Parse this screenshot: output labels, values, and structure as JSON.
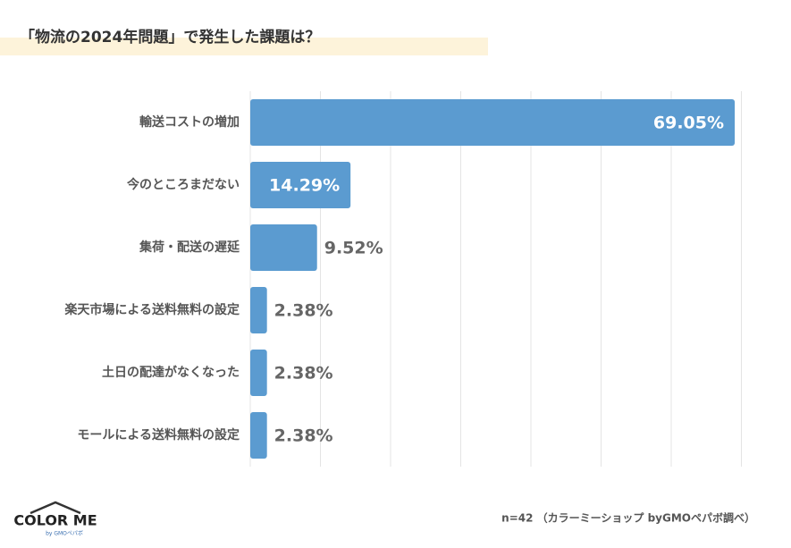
{
  "chart_data": {
    "type": "hbar",
    "title": "「物流の2024年問題」で発生した課題は？",
    "categories": [
      "輸送コストの増加",
      "今のところまだない",
      "集荷・配送の遅延",
      "楽天市場による送料無料の設定",
      "土日の配達がなくなった",
      "モールによる送料無料の設定"
    ],
    "values": [
      69.05,
      14.29,
      9.52,
      2.38,
      2.38,
      2.38
    ],
    "value_labels": [
      "69.05%",
      "14.29%",
      "9.52%",
      "2.38%",
      "2.38%",
      "2.38%"
    ],
    "color": "#5b9bd0",
    "xlim": [
      0,
      70
    ],
    "xticks": [
      0,
      10,
      20,
      30,
      40,
      50,
      60,
      70
    ],
    "grid": true,
    "note": "n=42 （カラーミーショップ byGMOペパボ調べ）"
  },
  "logo": {
    "name": "COLOR ME",
    "sub": "by GMOペパボ"
  }
}
